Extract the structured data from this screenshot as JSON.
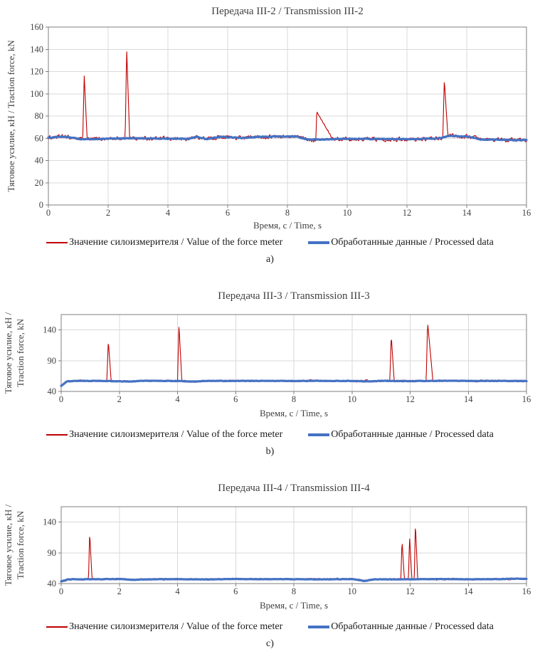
{
  "figure": {
    "background": "#ffffff",
    "colors": {
      "raw_series": "#c00000",
      "processed_series": "#4472c4",
      "gridline": "#d9d9d9",
      "plot_border": "#7f7f7f",
      "text": "#404040"
    },
    "legend": {
      "raw_label": "Значение силоизмерителя / Value of the force meter",
      "processed_label": "Обработанные данные / Processed data"
    }
  },
  "chart_data": [
    {
      "type": "line",
      "title": "Передача III-2 / Transmission III-2",
      "xlabel": "Время, с / Time, s",
      "ylabel": "Тяговое усилие, кН / Traction force, kN",
      "ylabel_lines": [
        "Тяговое усилие, кН / Traction force, kN"
      ],
      "xlim": [
        0,
        16
      ],
      "ylim": [
        0,
        160
      ],
      "x_ticks": [
        0,
        2,
        4,
        6,
        8,
        10,
        12,
        14,
        16
      ],
      "y_ticks": [
        0,
        20,
        40,
        60,
        80,
        100,
        120,
        140,
        160
      ],
      "grid": true,
      "legend_position": "bottom",
      "letter": "a)",
      "baseline_level": 60,
      "series": [
        {
          "name": "Значение силоизмерителя / Value of the force meter",
          "color": "#c00000",
          "width": 1.1,
          "role": "raw",
          "noise": 1.4,
          "spikes": [
            {
              "t": 1.2,
              "peak": 116,
              "rise": 0.05,
              "fall": 0.1
            },
            {
              "t": 2.62,
              "peak": 141,
              "rise": 0.05,
              "fall": 0.1
            },
            {
              "t": 8.98,
              "peak": 84,
              "rise": 0.03,
              "fall": 0.55
            },
            {
              "t": 13.25,
              "peak": 112,
              "rise": 0.05,
              "fall": 0.12
            }
          ]
        },
        {
          "name": "Обработанные данные / Processed data",
          "color": "#4472c4",
          "width": 3.2,
          "role": "processed",
          "noise": 0.25,
          "keypoints": [
            [
              0,
              60.5
            ],
            [
              0.5,
              61.5
            ],
            [
              1.1,
              59.2
            ],
            [
              1.9,
              59.5
            ],
            [
              2.6,
              60.0
            ],
            [
              3.4,
              59.8
            ],
            [
              4.7,
              59.3
            ],
            [
              4.95,
              61.3
            ],
            [
              5.3,
              59.2
            ],
            [
              5.75,
              61.4
            ],
            [
              6.4,
              60.3
            ],
            [
              7.3,
              61.5
            ],
            [
              8.3,
              61.6
            ],
            [
              8.7,
              58.6
            ],
            [
              9.3,
              58.9
            ],
            [
              9.9,
              59.6
            ],
            [
              11.2,
              59.3
            ],
            [
              12.3,
              59.2
            ],
            [
              13.1,
              60.0
            ],
            [
              13.4,
              62.0
            ],
            [
              14.1,
              61.3
            ],
            [
              14.45,
              59.0
            ],
            [
              15.2,
              58.6
            ],
            [
              16,
              58.2
            ]
          ]
        }
      ]
    },
    {
      "type": "line",
      "title": "Передача III-3 / Transmission III-3",
      "xlabel": "Время, с / Time, s",
      "ylabel": "Тяговое усилие, кН / Traction force, kN",
      "ylabel_lines": [
        "Тяговое усилие, кН /",
        "Traction force, kN"
      ],
      "xlim": [
        0,
        16
      ],
      "ylim": [
        40,
        165
      ],
      "x_ticks": [
        0,
        2,
        4,
        6,
        8,
        10,
        12,
        14,
        16
      ],
      "y_ticks": [
        40,
        90,
        140
      ],
      "grid": true,
      "legend_position": "bottom",
      "letter": "b)",
      "baseline_level": 57,
      "series": [
        {
          "name": "Значение силоизмерителя / Value of the force meter",
          "color": "#c00000",
          "width": 1.1,
          "role": "raw",
          "noise": 1.2,
          "spikes": [
            {
              "t": 1.62,
              "peak": 122,
              "rise": 0.05,
              "fall": 0.1
            },
            {
              "t": 4.05,
              "peak": 148,
              "rise": 0.05,
              "fall": 0.1
            },
            {
              "t": 11.35,
              "peak": 131,
              "rise": 0.05,
              "fall": 0.1
            },
            {
              "t": 12.6,
              "peak": 152,
              "rise": 0.05,
              "fall": 0.18
            }
          ]
        },
        {
          "name": "Обработанные данные / Processed data",
          "color": "#4472c4",
          "width": 3.2,
          "role": "processed",
          "noise": 0.25,
          "keypoints": [
            [
              0,
              49.0
            ],
            [
              0.2,
              56.5
            ],
            [
              0.6,
              57.2
            ],
            [
              1.5,
              57.0
            ],
            [
              2.4,
              56.0
            ],
            [
              2.7,
              57.3
            ],
            [
              4.0,
              57.0
            ],
            [
              4.6,
              56.0
            ],
            [
              5.0,
              57.2
            ],
            [
              6.0,
              57.0
            ],
            [
              7.0,
              57.3
            ],
            [
              8.0,
              57.0
            ],
            [
              9.0,
              57.2
            ],
            [
              10.0,
              57.0
            ],
            [
              10.6,
              56.3
            ],
            [
              11.0,
              57.2
            ],
            [
              11.8,
              56.8
            ],
            [
              12.6,
              57.0
            ],
            [
              13.4,
              57.3
            ],
            [
              14.2,
              57.0
            ],
            [
              15.0,
              57.2
            ],
            [
              16,
              56.8
            ]
          ]
        }
      ]
    },
    {
      "type": "line",
      "title": "Передача III-4 / Transmission III-4",
      "xlabel": "Время, с / Time, s",
      "ylabel": "Тяговое усилие, кН / Traction force, kN",
      "ylabel_lines": [
        "Тяговое усилие, кН /",
        "Traction force, kN"
      ],
      "xlim": [
        0,
        16
      ],
      "ylim": [
        40,
        165
      ],
      "x_ticks": [
        0,
        2,
        4,
        6,
        8,
        10,
        12,
        14,
        16
      ],
      "y_ticks": [
        40,
        90,
        140
      ],
      "grid": true,
      "legend_position": "bottom",
      "letter": "c)",
      "baseline_level": 47,
      "series": [
        {
          "name": "Значение силоизмерителя / Value of the force meter",
          "color": "#c00000",
          "width": 1.1,
          "role": "raw",
          "noise": 1.2,
          "spikes": [
            {
              "t": 0.98,
              "peak": 123,
              "rise": 0.04,
              "fall": 0.08
            },
            {
              "t": 11.72,
              "peak": 110,
              "rise": 0.04,
              "fall": 0.08
            },
            {
              "t": 11.98,
              "peak": 116,
              "rise": 0.04,
              "fall": 0.08
            },
            {
              "t": 12.18,
              "peak": 138,
              "rise": 0.04,
              "fall": 0.08
            }
          ]
        },
        {
          "name": "Обработанные данные / Processed data",
          "color": "#4472c4",
          "width": 3.2,
          "role": "processed",
          "noise": 0.25,
          "keypoints": [
            [
              0,
              43.5
            ],
            [
              0.25,
              46.8
            ],
            [
              1.0,
              47.0
            ],
            [
              2.0,
              47.5
            ],
            [
              2.4,
              46.0
            ],
            [
              3.0,
              47.0
            ],
            [
              4.0,
              47.2
            ],
            [
              5.0,
              46.8
            ],
            [
              6.0,
              47.4
            ],
            [
              7.0,
              47.0
            ],
            [
              8.0,
              47.2
            ],
            [
              9.0,
              46.8
            ],
            [
              10.0,
              47.3
            ],
            [
              10.45,
              44.2
            ],
            [
              10.8,
              47.0
            ],
            [
              11.5,
              46.8
            ],
            [
              12.3,
              47.0
            ],
            [
              13.0,
              47.3
            ],
            [
              14.0,
              47.0
            ],
            [
              15.0,
              47.2
            ],
            [
              15.7,
              48.0
            ],
            [
              16,
              47.5
            ]
          ]
        }
      ]
    }
  ]
}
